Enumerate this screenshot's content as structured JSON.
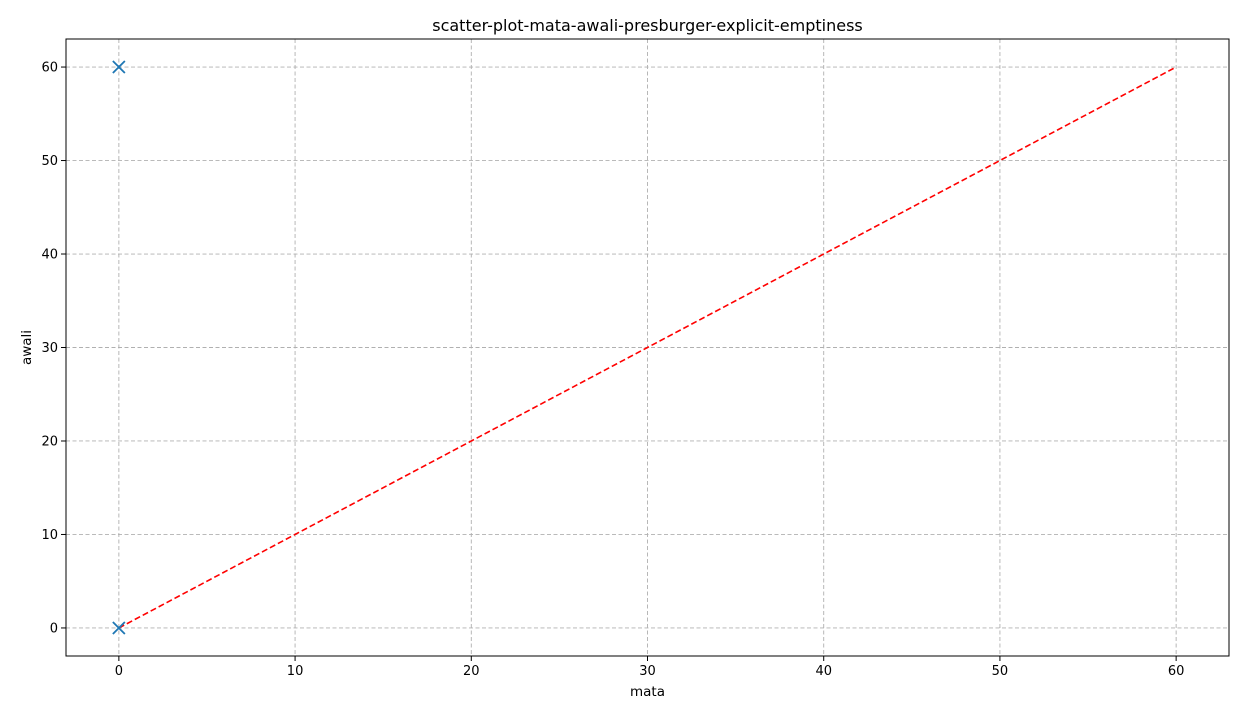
{
  "chart_data": {
    "type": "scatter",
    "title": "scatter-plot-mata-awali-presburger-explicit-emptiness",
    "xlabel": "mata",
    "ylabel": "awali",
    "xlim": [
      -3,
      63
    ],
    "ylim": [
      -3,
      63
    ],
    "x_ticks": [
      0,
      10,
      20,
      30,
      40,
      50,
      60
    ],
    "y_ticks": [
      0,
      10,
      20,
      30,
      40,
      50,
      60
    ],
    "grid": true,
    "series": [
      {
        "marker": "x",
        "color": "#1f77b4",
        "points": [
          {
            "x": 0,
            "y": 60
          },
          {
            "x": 0,
            "y": 0
          }
        ]
      }
    ],
    "reference_line": {
      "style": "dashed",
      "color": "#ff0000",
      "from": {
        "x": 0,
        "y": 0
      },
      "to": {
        "x": 60,
        "y": 60
      }
    }
  }
}
